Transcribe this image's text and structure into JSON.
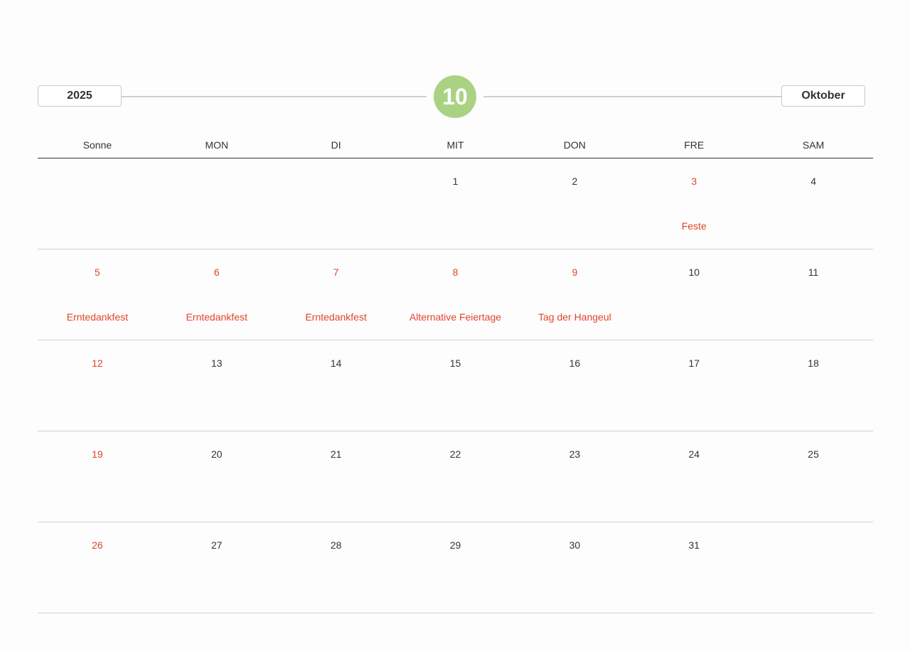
{
  "header": {
    "year": "2025",
    "month_number": "10",
    "month_name": "Oktober",
    "accent_color": "#aad283",
    "holiday_color": "#e0452a"
  },
  "weekdays": [
    {
      "label": "Sonne",
      "red": true
    },
    {
      "label": "MON",
      "red": false
    },
    {
      "label": "DI",
      "red": false
    },
    {
      "label": "MIT",
      "red": false
    },
    {
      "label": "DON",
      "red": false
    },
    {
      "label": "FRE",
      "red": false
    },
    {
      "label": "SAM",
      "red": false
    }
  ],
  "weeks": [
    [
      {
        "day": ""
      },
      {
        "day": ""
      },
      {
        "day": ""
      },
      {
        "day": "1"
      },
      {
        "day": "2"
      },
      {
        "day": "3",
        "red": true,
        "event": "Feste"
      },
      {
        "day": "4"
      }
    ],
    [
      {
        "day": "5",
        "red": true,
        "event": "Erntedankfest"
      },
      {
        "day": "6",
        "red": true,
        "event": "Erntedankfest"
      },
      {
        "day": "7",
        "red": true,
        "event": "Erntedankfest"
      },
      {
        "day": "8",
        "red": true,
        "event": "Alternative Feiertage"
      },
      {
        "day": "9",
        "red": true,
        "event": "Tag der Hangeul"
      },
      {
        "day": "10"
      },
      {
        "day": "11"
      }
    ],
    [
      {
        "day": "12",
        "red": true
      },
      {
        "day": "13"
      },
      {
        "day": "14"
      },
      {
        "day": "15"
      },
      {
        "day": "16"
      },
      {
        "day": "17"
      },
      {
        "day": "18"
      }
    ],
    [
      {
        "day": "19",
        "red": true
      },
      {
        "day": "20"
      },
      {
        "day": "21"
      },
      {
        "day": "22"
      },
      {
        "day": "23"
      },
      {
        "day": "24"
      },
      {
        "day": "25"
      }
    ],
    [
      {
        "day": "26",
        "red": true
      },
      {
        "day": "27"
      },
      {
        "day": "28"
      },
      {
        "day": "29"
      },
      {
        "day": "30"
      },
      {
        "day": "31"
      },
      {
        "day": ""
      }
    ]
  ]
}
